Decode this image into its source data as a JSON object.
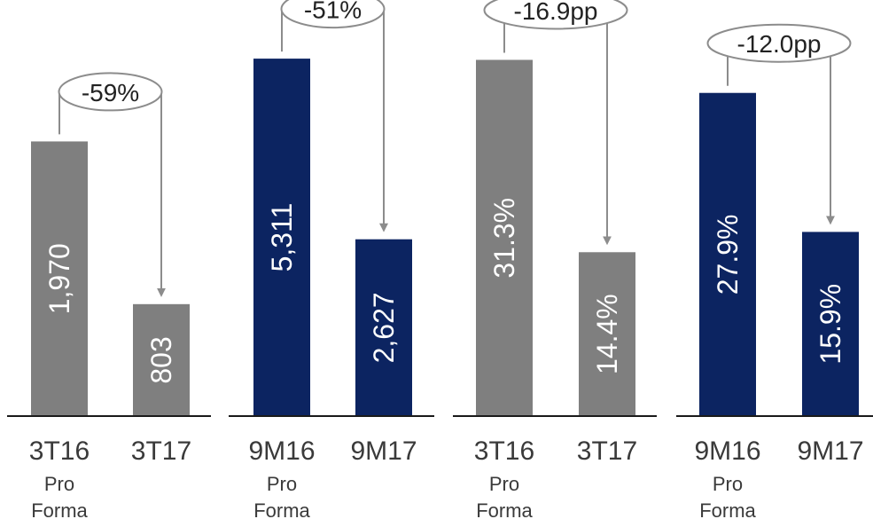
{
  "colors": {
    "gray": "#7f7f7f",
    "navy": "#0c2461",
    "connector": "#8c8c8c",
    "axis": "#1a1a1a"
  },
  "chart_data": [
    {
      "type": "bar",
      "categories": [
        {
          "main": "3T16",
          "sub": [
            "Pro",
            "Forma"
          ]
        },
        {
          "main": "3T17",
          "sub": []
        }
      ],
      "values": [
        1970,
        803
      ],
      "labels": [
        "1,970",
        "803"
      ],
      "ylim": [
        0,
        2800
      ],
      "color": "gray",
      "change": "-59%"
    },
    {
      "type": "bar",
      "categories": [
        {
          "main": "9M16",
          "sub": [
            "Pro",
            "Forma"
          ]
        },
        {
          "main": "9M17",
          "sub": []
        }
      ],
      "values": [
        5311,
        2627
      ],
      "labels": [
        "5,311",
        "2,627"
      ],
      "ylim": [
        0,
        5800
      ],
      "color": "navy",
      "change": "-51%"
    },
    {
      "type": "bar",
      "categories": [
        {
          "main": "3T16",
          "sub": [
            "Pro",
            "Forma"
          ]
        },
        {
          "main": "3T17",
          "sub": []
        }
      ],
      "values": [
        31.3,
        14.4
      ],
      "labels": [
        "31.3%",
        "14.4%"
      ],
      "ylim": [
        0,
        34.3
      ],
      "color": "gray",
      "change": "-16.9pp"
    },
    {
      "type": "bar",
      "categories": [
        {
          "main": "9M16",
          "sub": [
            "Pro",
            "Forma"
          ]
        },
        {
          "main": "9M17",
          "sub": []
        }
      ],
      "values": [
        27.9,
        15.9
      ],
      "labels": [
        "27.9%",
        "15.9%"
      ],
      "ylim": [
        0,
        33.7
      ],
      "color": "navy",
      "change": "-12.0pp"
    }
  ]
}
